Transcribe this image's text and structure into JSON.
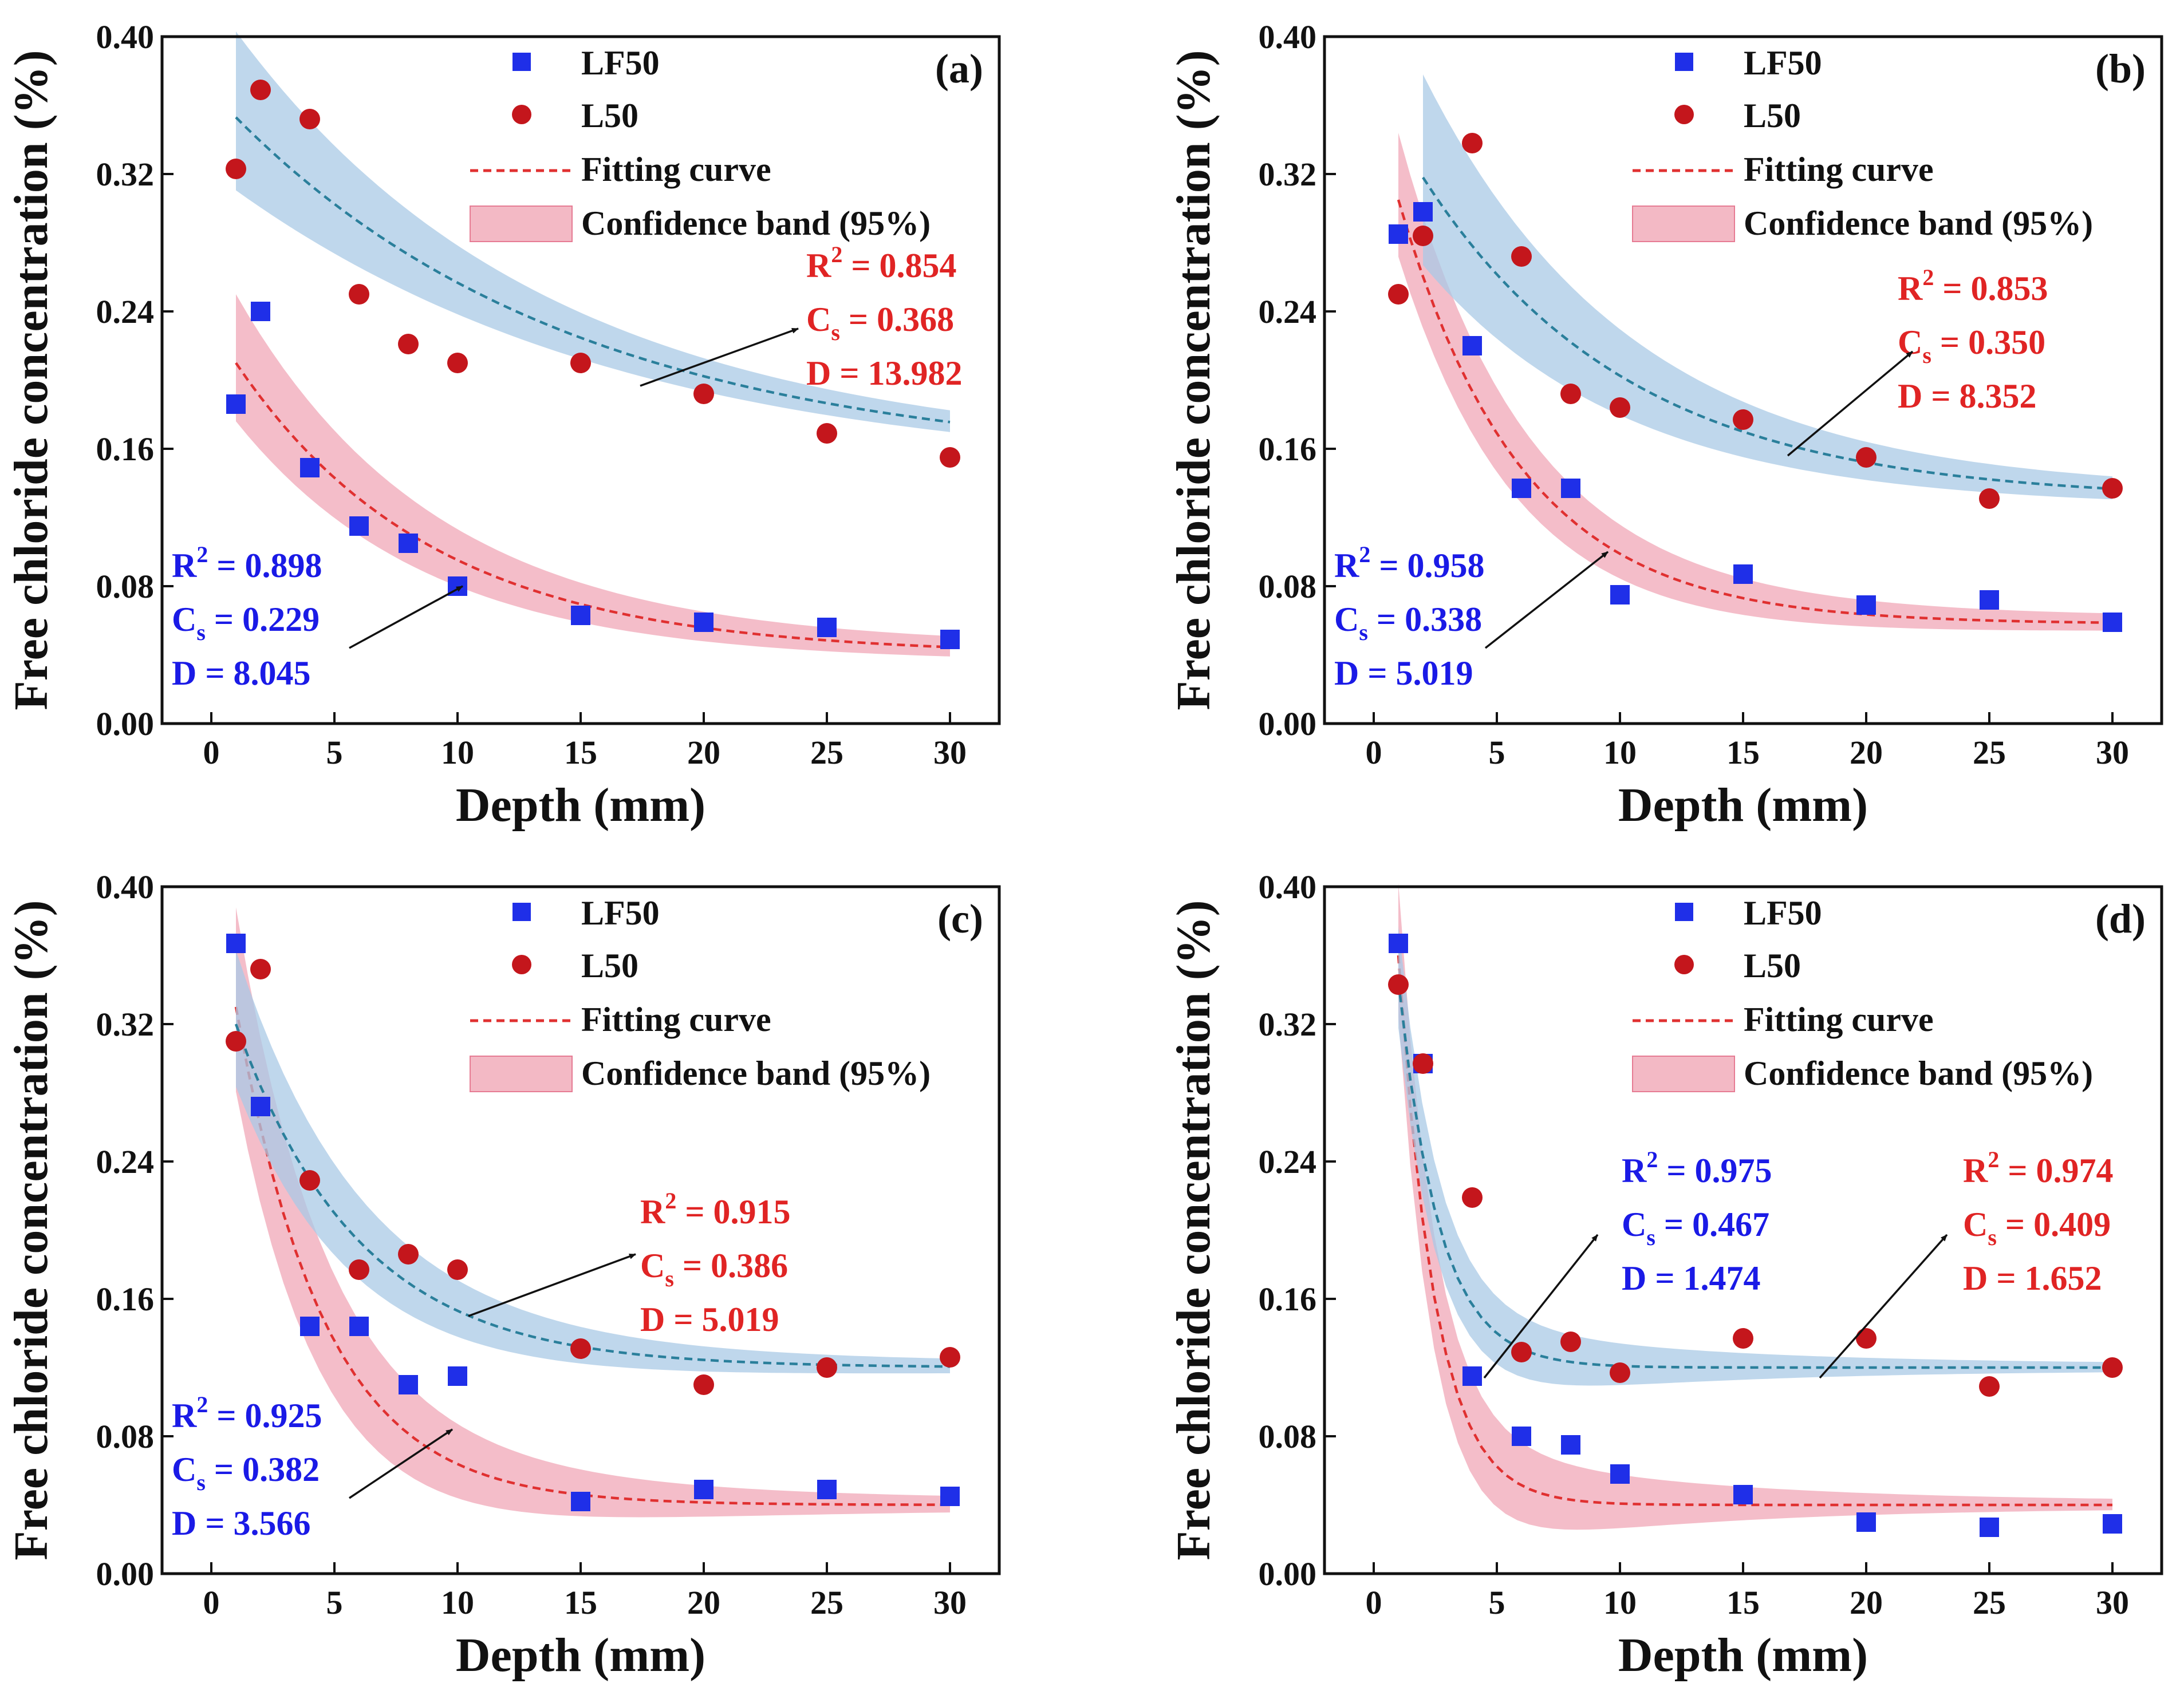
{
  "colors": {
    "lf50": "#1f2fe8",
    "l50": "#c4161c",
    "band_red": "#f0a7b7",
    "band_blue": "#a9c9e6",
    "fit_red": "#e03030",
    "fit_blue": "#2a7f9b",
    "stat_blue": "#1a1ae6",
    "stat_red": "#e02424"
  },
  "legend": {
    "lf50": "LF50",
    "l50": "L50",
    "fit": "Fitting curve",
    "band": "Confidence band (95%)"
  },
  "stat_labels": {
    "r2_base": "R",
    "r2_sup": "2",
    "cs_base": "C",
    "cs_sub": "s",
    "d_base": "D",
    "eq": "=",
    "d_eq": " = "
  },
  "chart_data": [
    {
      "panel": "(a)",
      "type": "scatter",
      "xlabel": "Depth (mm)",
      "ylabel": "Free chloride concentration (%)",
      "xlim": [
        -2,
        32
      ],
      "ylim": [
        0,
        0.4
      ],
      "xticks": [
        "0",
        "5",
        "10",
        "15",
        "20",
        "25",
        "30"
      ],
      "yticks": [
        "0.00",
        "0.08",
        "0.16",
        "0.24",
        "0.32",
        "0.40"
      ],
      "series": [
        {
          "name": "LF50",
          "x": [
            1,
            2,
            4,
            6,
            8,
            10,
            15,
            20,
            25,
            30
          ],
          "y": [
            0.186,
            0.24,
            0.149,
            0.115,
            0.105,
            0.08,
            0.063,
            0.059,
            0.056,
            0.049
          ]
        },
        {
          "name": "L50",
          "x": [
            1,
            2,
            4,
            6,
            8,
            10,
            15,
            20,
            25,
            30
          ],
          "y": [
            0.323,
            0.369,
            0.352,
            0.25,
            0.221,
            0.21,
            0.21,
            0.192,
            0.169,
            0.155
          ]
        }
      ],
      "fits": [
        {
          "series": "LF50",
          "x": [
            1,
            30
          ],
          "floor": 0.04,
          "start": 0.21,
          "end": 0.04,
          "scale": 8,
          "band_start": 0.035,
          "band_end": 0.005,
          "R2": "0.898",
          "Cs": "0.229",
          "D": "8.045"
        },
        {
          "series": "L50",
          "x": [
            1,
            30
          ],
          "floor": 0.15,
          "start": 0.353,
          "end": 0.152,
          "scale": 14,
          "band_start": 0.045,
          "band_end": 0.005,
          "R2": "0.854",
          "Cs": "0.368",
          "D": "13.982"
        }
      ]
    },
    {
      "panel": "(b)",
      "type": "scatter",
      "xlabel": "Depth (mm)",
      "ylabel": "Free chloride concentration (%)",
      "xlim": [
        -2,
        32
      ],
      "ylim": [
        0,
        0.4
      ],
      "xticks": [
        "0",
        "5",
        "10",
        "15",
        "20",
        "25",
        "30"
      ],
      "yticks": [
        "0.00",
        "0.08",
        "0.16",
        "0.24",
        "0.32",
        "0.40"
      ],
      "series": [
        {
          "name": "LF50",
          "x": [
            1,
            2,
            4,
            6,
            8,
            10,
            15,
            20,
            25,
            30
          ],
          "y": [
            0.285,
            0.298,
            0.22,
            0.137,
            0.137,
            0.075,
            0.087,
            0.069,
            0.072,
            0.059
          ]
        },
        {
          "name": "L50",
          "x": [
            1,
            2,
            4,
            6,
            8,
            10,
            15,
            20,
            25,
            30
          ],
          "y": [
            0.25,
            0.284,
            0.338,
            0.272,
            0.192,
            0.184,
            0.177,
            0.155,
            0.131,
            0.137
          ]
        }
      ],
      "fits": [
        {
          "series": "LF50",
          "x": [
            1,
            30
          ],
          "floor": 0.058,
          "start": 0.305,
          "end": 0.058,
          "scale": 5,
          "band_start": 0.035,
          "band_end": 0.004,
          "R2": "0.958",
          "Cs": "0.338",
          "D": "5.019"
        },
        {
          "series": "L50",
          "x": [
            2,
            30
          ],
          "floor": 0.13,
          "start": 0.318,
          "end": 0.132,
          "scale": 8.4,
          "band_start": 0.055,
          "band_end": 0.005,
          "R2": "0.853",
          "Cs": "0.350",
          "D": "8.352"
        }
      ]
    },
    {
      "panel": "(c)",
      "type": "scatter",
      "xlabel": "Depth (mm)",
      "ylabel": "Free chloride concentration (%)",
      "xlim": [
        -2,
        32
      ],
      "ylim": [
        0,
        0.4
      ],
      "xticks": [
        "0",
        "5",
        "10",
        "15",
        "20",
        "25",
        "30"
      ],
      "yticks": [
        "0.00",
        "0.08",
        "0.16",
        "0.24",
        "0.32",
        "0.40"
      ],
      "series": [
        {
          "name": "LF50",
          "x": [
            1,
            2,
            4,
            6,
            8,
            10,
            15,
            20,
            25,
            30
          ],
          "y": [
            0.367,
            0.272,
            0.144,
            0.144,
            0.11,
            0.115,
            0.042,
            0.049,
            0.049,
            0.045
          ]
        },
        {
          "name": "L50",
          "x": [
            1,
            2,
            4,
            6,
            8,
            10,
            15,
            20,
            25,
            30
          ],
          "y": [
            0.31,
            0.352,
            0.229,
            0.177,
            0.186,
            0.177,
            0.131,
            0.11,
            0.12,
            0.126
          ]
        }
      ],
      "fits": [
        {
          "series": "LF50",
          "x": [
            1,
            30
          ],
          "floor": 0.04,
          "start": 0.33,
          "end": 0.04,
          "scale": 3.6,
          "band_start": 0.055,
          "band_end": 0.003,
          "R2": "0.925",
          "Cs": "0.382",
          "D": "3.566"
        },
        {
          "series": "L50",
          "x": [
            1,
            30
          ],
          "floor": 0.12,
          "start": 0.32,
          "end": 0.12,
          "scale": 5,
          "band_start": 0.04,
          "band_end": 0.003,
          "R2": "0.915",
          "Cs": "0.386",
          "D": "5.019"
        }
      ]
    },
    {
      "panel": "(d)",
      "type": "scatter",
      "xlabel": "Depth (mm)",
      "ylabel": "Free chloride concentration (%)",
      "xlim": [
        -2,
        32
      ],
      "ylim": [
        0,
        0.4
      ],
      "xticks": [
        "0",
        "5",
        "10",
        "15",
        "20",
        "25",
        "30"
      ],
      "yticks": [
        "0.00",
        "0.08",
        "0.16",
        "0.24",
        "0.32",
        "0.40"
      ],
      "series": [
        {
          "name": "LF50",
          "x": [
            1,
            2,
            4,
            6,
            8,
            10,
            15,
            20,
            25,
            30
          ],
          "y": [
            0.367,
            0.297,
            0.115,
            0.08,
            0.075,
            0.058,
            0.046,
            0.03,
            0.027,
            0.029
          ]
        },
        {
          "name": "L50",
          "x": [
            1,
            2,
            4,
            6,
            8,
            10,
            15,
            20,
            25,
            30
          ],
          "y": [
            0.343,
            0.297,
            0.219,
            0.129,
            0.135,
            0.117,
            0.137,
            0.137,
            0.109,
            0.12
          ]
        }
      ],
      "fits": [
        {
          "series": "LF50",
          "x": [
            1,
            30
          ],
          "floor": 0.04,
          "start": 0.36,
          "end": 0.04,
          "scale": 1.5,
          "band_start": 0.04,
          "band_end": 0.002,
          "R2": "0.975",
          "Cs": "0.467",
          "D": "1.474"
        },
        {
          "series": "L50",
          "x": [
            1,
            30
          ],
          "floor": 0.12,
          "start": 0.345,
          "end": 0.12,
          "scale": 1.65,
          "band_start": 0.03,
          "band_end": 0.002,
          "R2": "0.974",
          "Cs": "0.409",
          "D": "1.652"
        }
      ]
    }
  ]
}
